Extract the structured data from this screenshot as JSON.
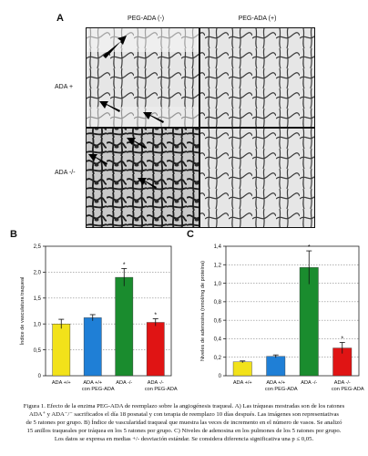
{
  "figure": {
    "panel_a": {
      "letter": "A",
      "col_headers": [
        "PEG-ADA (-)",
        "PEG-ADA (+)"
      ],
      "row_labels": [
        "ADA +",
        "ADA -/-"
      ]
    },
    "panel_b_letter": "B",
    "panel_c_letter": "C",
    "caption_lines": [
      "Figura 1. Efecto de la enzima PEG-ADA de reemplazo sobre la angiogénesis traqueal. A) Las tráqueas mostradas son de los ratones",
      "ADA⁺ y ADA⁻/⁻ sacrificados el día 18 posnatal y con terapia de reemplazo 10 días después. Las imágenes son representativas",
      "de 5 ratones por grupo. B) Índice de vascularidad traqueal que muestra las veces de incremento en el número de vasos. Se analizó",
      "15 anillos traqueales por tráquea en los 5 ratones por grupo. C) Niveles de adenosina en los pulmones de los 5 ratones por grupo.",
      "Los datos se expresa en medias +/- desviación estándar. Se considera diferencia significativa una p ≤ 0,05."
    ]
  },
  "chart_data": [
    {
      "type": "bar",
      "panel": "B",
      "categories": [
        "ADA +/+",
        "ADA +/+\ncon PEG-ADA",
        "ADA -/-",
        "ADA -/-\ncon PEG-ADA"
      ],
      "values": [
        1.0,
        1.12,
        1.9,
        1.03
      ],
      "errors": [
        0.09,
        0.06,
        0.17,
        0.07
      ],
      "significant": [
        false,
        false,
        true,
        true
      ],
      "colors": [
        "#f2e21a",
        "#1f7fd6",
        "#1a8c2e",
        "#e01414"
      ],
      "ylabel": "Índice de vasculatura traqueal",
      "ylim": [
        0,
        2.5
      ],
      "yticks": [
        "0",
        "0,5",
        "1,0",
        "1,5",
        "2,0",
        "2,5"
      ],
      "grid": true
    },
    {
      "type": "bar",
      "panel": "C",
      "categories": [
        "ADA +/+",
        "ADA +/+\ncon PEG-ADA",
        "ADA -/-",
        "ADA -/-\ncon PEG-ADA"
      ],
      "values": [
        0.15,
        0.21,
        1.17,
        0.3
      ],
      "errors": [
        0.01,
        0.015,
        0.18,
        0.06
      ],
      "significant": [
        false,
        false,
        true,
        true
      ],
      "colors": [
        "#f2e21a",
        "#1f7fd6",
        "#1a8c2e",
        "#e01414"
      ],
      "ylabel": "Niveles de adenosina (nmol/mg de proteína)",
      "ylim": [
        0,
        1.4
      ],
      "yticks": [
        "0",
        "0,2",
        "0,4",
        "0,6",
        "0,8",
        "1,0",
        "1,2",
        "1,4"
      ],
      "grid": true
    }
  ]
}
